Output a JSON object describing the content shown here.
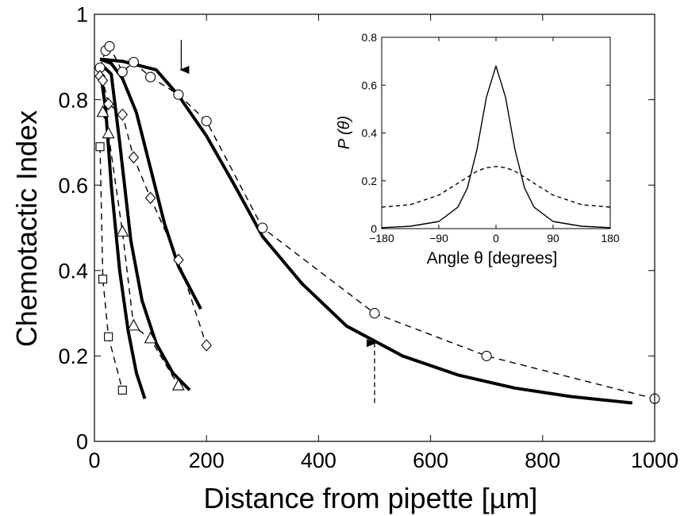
{
  "chart_data": [
    {
      "type": "line",
      "xlabel": "Distance from pipette [µm]",
      "ylabel": "Chemotactic Index",
      "xlim": [
        0,
        1000
      ],
      "ylim": [
        0,
        1
      ],
      "x_ticks": [
        0,
        200,
        400,
        600,
        800,
        1000
      ],
      "y_ticks": [
        0,
        0.2,
        0.4,
        0.6,
        0.8,
        1
      ],
      "x_tick_labels": [
        "0",
        "200",
        "400",
        "600",
        "800",
        "1000"
      ],
      "y_tick_labels": [
        "0",
        "0.2",
        "0.4",
        "0.6",
        "0.8",
        "1"
      ],
      "grid": false,
      "series": [
        {
          "marker": "circle",
          "style": "dashed",
          "x": [
            10,
            20,
            27,
            50,
            70,
            100,
            150,
            200,
            300,
            500,
            700,
            1000
          ],
          "y": [
            0.875,
            0.915,
            0.925,
            0.865,
            0.888,
            0.853,
            0.812,
            0.75,
            0.5,
            0.3,
            0.2,
            0.1
          ]
        },
        {
          "marker": "diamond",
          "style": "dashed",
          "x": [
            10,
            15,
            25,
            50,
            70,
            100,
            150,
            200
          ],
          "y": [
            0.855,
            0.845,
            0.79,
            0.765,
            0.665,
            0.57,
            0.425,
            0.225
          ]
        },
        {
          "marker": "triangle",
          "style": "dashed",
          "x": [
            15,
            25,
            50,
            70,
            100,
            150
          ],
          "y": [
            0.77,
            0.72,
            0.49,
            0.27,
            0.24,
            0.13
          ]
        },
        {
          "marker": "square",
          "style": "dashed",
          "x": [
            10,
            15,
            25,
            50
          ],
          "y": [
            0.69,
            0.38,
            0.245,
            0.12
          ]
        },
        {
          "marker": "none",
          "style": "solid",
          "x": [
            10,
            50,
            110,
            150,
            200,
            250,
            300,
            370,
            450,
            550,
            650,
            750,
            850,
            960
          ],
          "y": [
            0.895,
            0.89,
            0.87,
            0.81,
            0.715,
            0.6,
            0.48,
            0.37,
            0.27,
            0.2,
            0.155,
            0.125,
            0.105,
            0.09
          ]
        },
        {
          "marker": "none",
          "style": "solid",
          "x": [
            10,
            30,
            50,
            75,
            100,
            125,
            150,
            190
          ],
          "y": [
            0.895,
            0.885,
            0.85,
            0.77,
            0.64,
            0.51,
            0.41,
            0.31
          ]
        },
        {
          "marker": "none",
          "style": "solid",
          "x": [
            10,
            30,
            45,
            65,
            85,
            110,
            140,
            170
          ],
          "y": [
            0.885,
            0.86,
            0.7,
            0.47,
            0.33,
            0.23,
            0.16,
            0.12
          ]
        },
        {
          "marker": "none",
          "style": "solid",
          "x": [
            10,
            20,
            30,
            45,
            60,
            75,
            90
          ],
          "y": [
            0.87,
            0.78,
            0.6,
            0.4,
            0.26,
            0.16,
            0.1
          ]
        }
      ],
      "annotations": [
        {
          "type": "arrow",
          "style": "solid",
          "direction": "down",
          "x": 155,
          "y_from": 0.94,
          "y_to": 0.87
        },
        {
          "type": "arrow",
          "style": "dashed",
          "direction": "up",
          "x": 500,
          "y_from": 0.09,
          "y_to": 0.23
        }
      ]
    },
    {
      "type": "line",
      "xlabel": "Angle θ [degrees]",
      "ylabel": "P (θ)",
      "xlim": [
        -180,
        180
      ],
      "ylim": [
        0,
        0.8
      ],
      "x_ticks": [
        -180,
        -90,
        0,
        90,
        180
      ],
      "y_ticks": [
        0,
        0.2,
        0.4,
        0.6,
        0.8
      ],
      "x_tick_labels": [
        "−180",
        "−90",
        "0",
        "90",
        "180"
      ],
      "y_tick_labels": [
        "0",
        "0.2",
        "0.4",
        "0.6",
        "0.8"
      ],
      "grid": false,
      "series": [
        {
          "style": "solid",
          "x": [
            -180,
            -135,
            -90,
            -60,
            -45,
            -30,
            -15,
            0,
            15,
            30,
            45,
            60,
            90,
            135,
            180
          ],
          "y": [
            0.004,
            0.01,
            0.03,
            0.09,
            0.17,
            0.33,
            0.55,
            0.68,
            0.55,
            0.33,
            0.17,
            0.09,
            0.03,
            0.01,
            0.004
          ]
        },
        {
          "style": "dashed",
          "x": [
            -180,
            -135,
            -90,
            -60,
            -45,
            -30,
            -15,
            0,
            15,
            30,
            45,
            60,
            90,
            135,
            180
          ],
          "y": [
            0.09,
            0.1,
            0.14,
            0.19,
            0.215,
            0.24,
            0.255,
            0.26,
            0.255,
            0.24,
            0.215,
            0.19,
            0.14,
            0.1,
            0.09
          ]
        }
      ]
    }
  ]
}
